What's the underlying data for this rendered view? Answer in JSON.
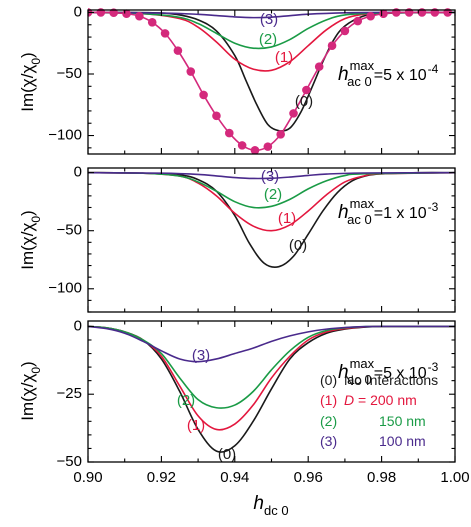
{
  "chart_data": [
    {
      "type": "line",
      "ylabel": "Im(χ/χ0)",
      "ylim": [
        -115,
        2
      ],
      "yticks": [
        0,
        -50,
        -100
      ],
      "xlim": [
        0.9,
        1.0
      ],
      "annotation": {
        "prefix": "h",
        "sup": "max",
        "sub": "ac 0",
        "value_text": "=5 x 10",
        "exp": "-4"
      },
      "series": [
        {
          "label": "(0)",
          "color": "#1a1a1a",
          "x": [
            0.9,
            0.91,
            0.92,
            0.925,
            0.93,
            0.935,
            0.94,
            0.943,
            0.946,
            0.949,
            0.952,
            0.955,
            0.958,
            0.961,
            0.964,
            0.967,
            0.97,
            0.975,
            0.98,
            0.99,
            1.0
          ],
          "y": [
            0,
            0,
            -0.5,
            -2,
            -6,
            -15,
            -35,
            -55,
            -75,
            -91,
            -96,
            -94,
            -81,
            -61,
            -40,
            -22,
            -11,
            -3,
            -1,
            0,
            0
          ]
        },
        {
          "label": "(1)",
          "color": "#e3173e",
          "x": [
            0.9,
            0.915,
            0.925,
            0.93,
            0.935,
            0.94,
            0.945,
            0.95,
            0.955,
            0.96,
            0.965,
            0.97,
            0.975,
            0.98,
            0.99,
            1.0
          ],
          "y": [
            0,
            -1,
            -5,
            -12,
            -24,
            -38,
            -46,
            -47,
            -40,
            -27,
            -14,
            -5,
            -1.5,
            -0.5,
            0,
            0
          ]
        },
        {
          "label": "(2)",
          "color": "#1a9b46",
          "x": [
            0.9,
            0.915,
            0.925,
            0.93,
            0.935,
            0.94,
            0.945,
            0.95,
            0.955,
            0.96,
            0.965,
            0.97,
            0.98,
            1.0
          ],
          "y": [
            0,
            -1,
            -4,
            -9,
            -17,
            -25,
            -29,
            -28,
            -22,
            -13,
            -6,
            -2,
            -0.5,
            0
          ]
        },
        {
          "label": "(3)",
          "color": "#4a2a8c",
          "x": [
            0.9,
            0.92,
            0.93,
            0.935,
            0.94,
            0.945,
            0.95,
            0.955,
            0.96,
            0.97,
            0.98,
            1.0
          ],
          "y": [
            0,
            -0.5,
            -1.5,
            -2.5,
            -3.6,
            -4.2,
            -3.8,
            -2.6,
            -1.4,
            -0.3,
            0,
            0
          ]
        },
        {
          "label": "",
          "color": "#d4297c",
          "markers": true,
          "x": [
            0.9,
            0.9035,
            0.907,
            0.9105,
            0.914,
            0.9175,
            0.921,
            0.9245,
            0.928,
            0.9315,
            0.935,
            0.9385,
            0.942,
            0.9455,
            0.949,
            0.9525,
            0.956,
            0.9595,
            0.963,
            0.9665,
            0.97,
            0.9735,
            0.977,
            0.9805,
            0.984,
            0.9875,
            0.991,
            0.9945,
            0.998
          ],
          "y": [
            0,
            0,
            -0.2,
            -1,
            -3,
            -8,
            -17,
            -31,
            -48,
            -67,
            -84,
            -98,
            -108,
            -112,
            -109,
            -99,
            -82,
            -63,
            -44,
            -27,
            -15,
            -7,
            -3,
            -1,
            0,
            0,
            0,
            0,
            0
          ]
        }
      ]
    },
    {
      "type": "line",
      "ylabel": "Im(χ/χ0)",
      "ylim": [
        -120,
        4
      ],
      "yticks": [
        0,
        -50,
        -100
      ],
      "xlim": [
        0.9,
        1.0
      ],
      "annotation": {
        "prefix": "h",
        "sup": "max",
        "sub": "ac 0",
        "value_text": "=1 x 10",
        "exp": "-3"
      },
      "series": [
        {
          "label": "(0)",
          "color": "#1a1a1a",
          "x": [
            0.9,
            0.915,
            0.925,
            0.93,
            0.935,
            0.94,
            0.944,
            0.948,
            0.952,
            0.956,
            0.96,
            0.964,
            0.968,
            0.972,
            0.976,
            0.98,
            0.99,
            1.0
          ],
          "y": [
            0,
            -0.5,
            -2,
            -6,
            -16,
            -37,
            -61,
            -78,
            -81,
            -72,
            -53,
            -33,
            -17,
            -7,
            -2.5,
            -1,
            0,
            0
          ]
        },
        {
          "label": "(1)",
          "color": "#e3173e",
          "x": [
            0.9,
            0.915,
            0.925,
            0.93,
            0.935,
            0.94,
            0.945,
            0.95,
            0.955,
            0.96,
            0.965,
            0.97,
            0.975,
            0.98,
            1.0
          ],
          "y": [
            0,
            -0.5,
            -3,
            -9,
            -20,
            -35,
            -46,
            -50,
            -45,
            -33,
            -19,
            -8,
            -3,
            -1,
            0
          ]
        },
        {
          "label": "(2)",
          "color": "#1a9b46",
          "x": [
            0.9,
            0.915,
            0.925,
            0.93,
            0.935,
            0.94,
            0.945,
            0.95,
            0.955,
            0.96,
            0.965,
            0.97,
            0.975,
            1.0
          ],
          "y": [
            0,
            -0.5,
            -3,
            -8,
            -16,
            -25,
            -30,
            -29,
            -23,
            -14,
            -7,
            -2.5,
            -1,
            0
          ]
        },
        {
          "label": "(3)",
          "color": "#4a2a8c",
          "x": [
            0.9,
            0.92,
            0.93,
            0.935,
            0.94,
            0.945,
            0.95,
            0.955,
            0.96,
            0.965,
            0.975,
            1.0
          ],
          "y": [
            0,
            -0.5,
            -1.5,
            -2.8,
            -4.2,
            -5,
            -4.8,
            -3.8,
            -2.4,
            -1.2,
            -0.3,
            0
          ]
        }
      ]
    },
    {
      "type": "line",
      "ylabel": "Im(χ/χ0)",
      "ylim": [
        -50,
        2
      ],
      "yticks": [
        0,
        -25,
        -50
      ],
      "xlim": [
        0.9,
        1.0
      ],
      "xticks": [
        "0.90",
        "0.92",
        "0.94",
        "0.96",
        "0.98",
        "1.00"
      ],
      "xlabel": {
        "prefix": "h",
        "sub": "dc 0"
      },
      "annotation": {
        "prefix": "h",
        "sup": "max",
        "sub": "ac 0",
        "value_text": "=5 x 10",
        "exp": "-3"
      },
      "series": [
        {
          "label": "(0)",
          "color": "#1a1a1a",
          "x": [
            0.9,
            0.905,
            0.91,
            0.915,
            0.92,
            0.925,
            0.93,
            0.935,
            0.94,
            0.945,
            0.95,
            0.955,
            0.96,
            0.965,
            0.97,
            0.975,
            0.98,
            0.99,
            1.0
          ],
          "y": [
            0,
            -0.5,
            -2,
            -5,
            -12,
            -24,
            -38,
            -46,
            -44,
            -35,
            -23,
            -12,
            -6,
            -2.5,
            -1,
            -0.3,
            0,
            0,
            0
          ]
        },
        {
          "label": "(1)",
          "color": "#e3173e",
          "x": [
            0.9,
            0.905,
            0.91,
            0.915,
            0.92,
            0.925,
            0.93,
            0.935,
            0.94,
            0.945,
            0.95,
            0.955,
            0.96,
            0.965,
            0.97,
            0.975,
            0.98,
            1.0
          ],
          "y": [
            0,
            -0.5,
            -2,
            -5,
            -11,
            -22,
            -33,
            -38,
            -36,
            -29,
            -19,
            -11,
            -5,
            -2,
            -0.8,
            -0.2,
            0,
            0
          ]
        },
        {
          "label": "(2)",
          "color": "#1a9b46",
          "x": [
            0.9,
            0.905,
            0.91,
            0.915,
            0.92,
            0.925,
            0.93,
            0.935,
            0.94,
            0.945,
            0.95,
            0.955,
            0.96,
            0.965,
            0.97,
            0.975,
            0.98,
            1.0
          ],
          "y": [
            0,
            -0.5,
            -2,
            -5,
            -10,
            -19,
            -27,
            -30,
            -29,
            -24,
            -16,
            -9,
            -4,
            -1.5,
            -0.5,
            -0.1,
            0,
            0
          ]
        },
        {
          "label": "(3)",
          "color": "#4a2a8c",
          "x": [
            0.9,
            0.905,
            0.91,
            0.915,
            0.92,
            0.925,
            0.93,
            0.935,
            0.94,
            0.945,
            0.95,
            0.955,
            0.96,
            0.965,
            0.97,
            0.975,
            0.98,
            1.0
          ],
          "y": [
            0,
            -0.8,
            -2.5,
            -5.5,
            -9,
            -12,
            -13,
            -12,
            -10,
            -8,
            -5.5,
            -3.5,
            -2,
            -1,
            -0.4,
            -0.1,
            0,
            0
          ]
        }
      ],
      "legend": {
        "placement": "bottom-right",
        "entries": [
          {
            "num": "(0)",
            "text": "No Interactions",
            "color": "#1a1a1a"
          },
          {
            "num": "(1)",
            "text": "D = 200 nm",
            "color": "#e3173e"
          },
          {
            "num": "(2)",
            "text": "150 nm",
            "color": "#1a9b46"
          },
          {
            "num": "(3)",
            "text": "100 nm",
            "color": "#4a2a8c"
          }
        ]
      }
    }
  ]
}
